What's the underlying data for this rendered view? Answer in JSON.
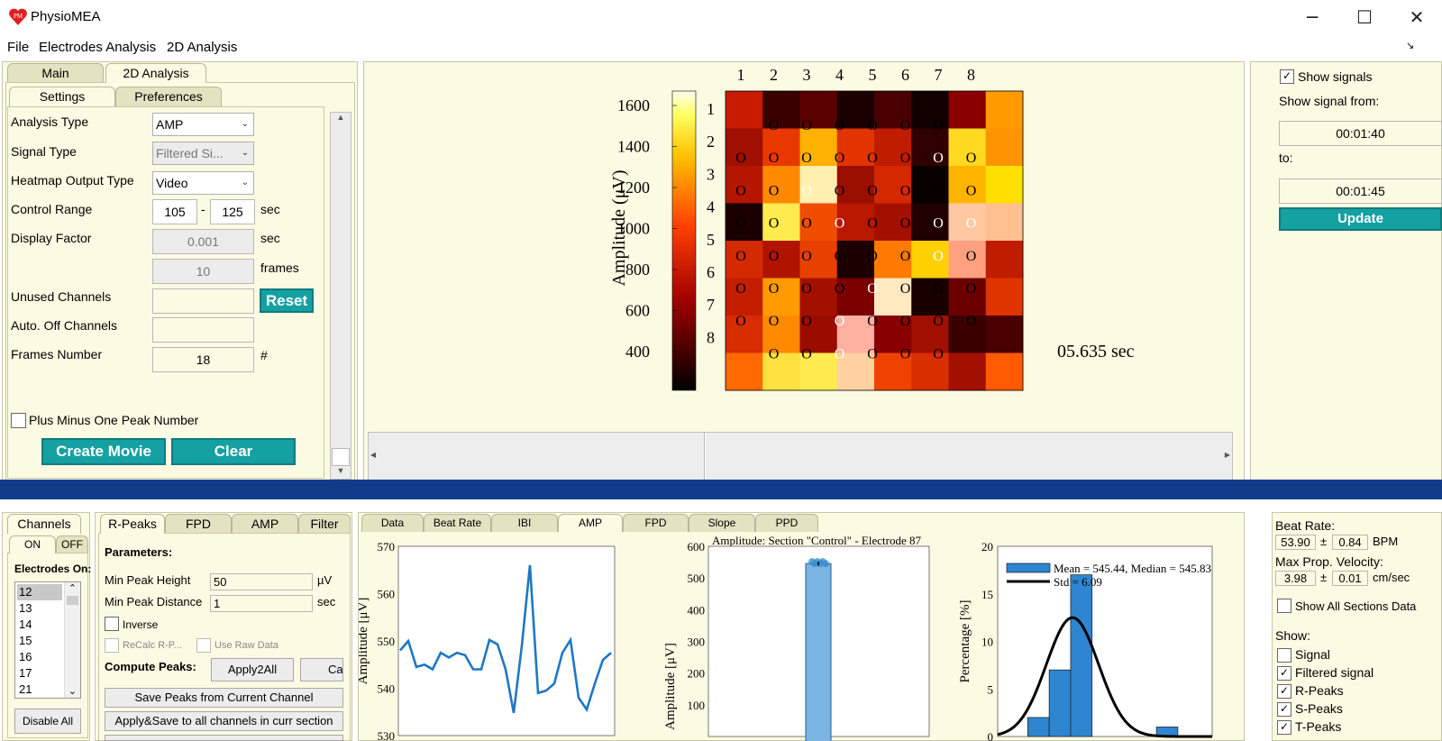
{
  "app": {
    "title": "PhysioMEA",
    "logo_text": "PM"
  },
  "window": {
    "minimize": "─",
    "maximize": "☐",
    "close": "✕"
  },
  "menu": [
    "File",
    "Electrodes Analysis",
    "2D Analysis"
  ],
  "left_panel": {
    "tabs": [
      "Main",
      "2D Analysis"
    ],
    "subtabs": [
      "Settings",
      "Preferences"
    ],
    "analysis_type": {
      "label": "Analysis Type",
      "value": "AMP"
    },
    "signal_type": {
      "label": "Signal Type",
      "value": "Filtered Si..."
    },
    "heatmap_output": {
      "label": "Heatmap Output Type",
      "value": "Video"
    },
    "control_range": {
      "label": "Control Range",
      "from": "105",
      "sep": "-",
      "to": "125",
      "unit": "sec"
    },
    "display_factor": {
      "label": "Display Factor",
      "value": "0.001",
      "unit": "sec"
    },
    "frames": {
      "value": "10",
      "unit": "frames"
    },
    "unused_channels": {
      "label": "Unused Channels",
      "value": "",
      "reset": "Reset"
    },
    "auto_off": {
      "label": "Auto. Off Channels",
      "value": ""
    },
    "frames_number": {
      "label": "Frames Number",
      "value": "18",
      "unit": "#"
    },
    "plus_minus": {
      "label": "Plus Minus One Peak Number",
      "checked": false
    },
    "create_movie": "Create Movie",
    "clear": "Clear"
  },
  "heatmap": {
    "colorbar_label": "Amplitude (μV)",
    "colorbar_ticks": [
      "1600",
      "1400",
      "1200",
      "1000",
      "800",
      "600",
      "400"
    ],
    "col_labels": [
      "1",
      "2",
      "3",
      "4",
      "5",
      "6",
      "7",
      "8"
    ],
    "row_labels": [
      "1",
      "2",
      "3",
      "4",
      "5",
      "6",
      "7",
      "8"
    ],
    "time": "05.635 sec",
    "marker": "O",
    "cells": [
      [
        "#c81a00",
        "#3a0000",
        "#5a0000",
        "#1a0000",
        "#4a0000",
        "#100000",
        "#8a0000",
        "#ff9a00"
      ],
      [
        "#a01000",
        "#e83800",
        "#ffb000",
        "#e23400",
        "#c01c00",
        "#300000",
        "#ffd820",
        "#ff9400"
      ],
      [
        "#b41600",
        "#ff8800",
        "#fff0b0",
        "#9a0e00",
        "#d42800",
        "#080000",
        "#ffb400",
        "#ffe000"
      ],
      [
        "#1a0000",
        "#ffea50",
        "#f04c00",
        "#b81800",
        "#a41000",
        "#200000",
        "#ffc8a0",
        "#ffc090"
      ],
      [
        "#d42a00",
        "#b01400",
        "#e84000",
        "#1c0000",
        "#ff7a00",
        "#ffd000",
        "#ffa080",
        "#c01c00"
      ],
      [
        "#c41e00",
        "#ff9a00",
        "#a41000",
        "#7a0000",
        "#ffe8c0",
        "#180000",
        "#6a0000",
        "#e03400"
      ],
      [
        "#d62c00",
        "#ff8a00",
        "#9a0c00",
        "#ffb0a0",
        "#880000",
        "#a01000",
        "#3a0000",
        "#4a0000"
      ],
      [
        "#ff6a00",
        "#ffe040",
        "#ffea50",
        "#ffd0a0",
        "#ee4200",
        "#d82e00",
        "#a41000",
        "#ff5a00"
      ]
    ],
    "marker_colors": [
      [
        null,
        "k",
        "k",
        "k",
        "k",
        "k",
        "k",
        null
      ],
      [
        "k",
        "k",
        "k",
        "k",
        "k",
        "k",
        "w",
        "k"
      ],
      [
        "k",
        "k",
        "w",
        "k",
        "k",
        "k",
        "k",
        "k"
      ],
      [
        "k",
        "k",
        "k",
        "w",
        "k",
        "k",
        "w",
        "w"
      ],
      [
        "k",
        "k",
        "k",
        "k",
        "k",
        "k",
        "w",
        "k"
      ],
      [
        "k",
        "k",
        "k",
        "k",
        "w",
        "k",
        "k",
        "k"
      ],
      [
        "k",
        "k",
        "k",
        "w",
        "k",
        "k",
        "k",
        "k"
      ],
      [
        null,
        "k",
        "k",
        "w",
        "k",
        "k",
        "k",
        null
      ]
    ]
  },
  "right_panel": {
    "show_signals": {
      "label": "Show signals",
      "checked": true
    },
    "show_from_label": "Show signal from:",
    "from": "00:01:40",
    "to_label": "to:",
    "to": "00:01:45",
    "update": "Update"
  },
  "channels_panel": {
    "tab": "Channels",
    "on": "ON",
    "off": "OFF",
    "electrodes_on": "Electrodes On:",
    "items": [
      "12",
      "13",
      "14",
      "15",
      "16",
      "17",
      "21"
    ],
    "disable_all": "Disable All"
  },
  "peaks_panel": {
    "tabs": [
      "R-Peaks",
      "FPD",
      "AMP",
      "Filter"
    ],
    "parameters": "Parameters:",
    "min_peak_height": {
      "label": "Min Peak Height",
      "value": "50",
      "unit": "µV"
    },
    "min_peak_distance": {
      "label": "Min Peak Distance",
      "value": "1",
      "unit": "sec"
    },
    "inverse": "Inverse",
    "recalc": "ReCalc R-P...",
    "use_raw": "Use Raw Data",
    "compute_peaks": "Compute Peaks:",
    "apply2all": "Apply2All",
    "ca": "Ca",
    "save_peaks": "Save Peaks from Current Channel",
    "apply_save": "Apply&Save to all channels in curr section"
  },
  "analysis_tabs": [
    "Data",
    "Beat Rate",
    "IBI",
    "AMP",
    "FPD",
    "Slope",
    "PPD"
  ],
  "chart_data": [
    {
      "type": "line",
      "ylabel": "Amplitude [μV]",
      "ylim": [
        530,
        570
      ],
      "yticks": [
        "570",
        "560",
        "550",
        "540",
        "530"
      ],
      "values": [
        548,
        550,
        544.5,
        545,
        544,
        547.5,
        546.5,
        547.5,
        547,
        544,
        544,
        550.2,
        549.3,
        544,
        534.8,
        549,
        566,
        539,
        539.5,
        541,
        547.5,
        550.2,
        538,
        535.5,
        541,
        546,
        547.5
      ]
    },
    {
      "type": "bar",
      "title": "Amplitude: Section \"Control\" - Electrode 87",
      "ylabel": "Amplitude [μV]",
      "ylim": [
        0,
        600
      ],
      "yticks": [
        "600",
        "500",
        "400",
        "300",
        "200",
        "100"
      ],
      "values": [
        545.44
      ],
      "error": 6.09
    },
    {
      "type": "bar",
      "ylabel": "Percentage [%]",
      "ylim": [
        0,
        20
      ],
      "yticks": [
        "20",
        "15",
        "10",
        "5",
        "0"
      ],
      "bins": [
        {
          "start": 535,
          "end": 540,
          "value": 2
        },
        {
          "start": 540,
          "end": 545,
          "value": 7
        },
        {
          "start": 545,
          "end": 550,
          "value": 17
        },
        {
          "start": 565,
          "end": 570,
          "value": 1
        }
      ],
      "legend": [
        "Mean = 545.44, Median = 545.83",
        "Std = 6.09"
      ],
      "fit": {
        "mean": 545.44,
        "std": 6.09,
        "peak": 12.5
      }
    }
  ],
  "stats_panel": {
    "beat_rate_label": "Beat Rate:",
    "beat_rate": {
      "value": "53.90",
      "pm": "±",
      "err": "0.84",
      "unit": "BPM"
    },
    "max_prop_label": "Max Prop. Velocity:",
    "max_prop": {
      "value": "3.98",
      "pm": "±",
      "err": "0.01",
      "unit": "cm/sec"
    },
    "show_all": "Show All Sections Data",
    "show_label": "Show:",
    "show_items": [
      {
        "label": "Signal",
        "checked": false
      },
      {
        "label": "Filtered signal",
        "checked": true
      },
      {
        "label": "R-Peaks",
        "checked": true
      },
      {
        "label": "S-Peaks",
        "checked": true
      },
      {
        "label": "T-Peaks",
        "checked": true
      }
    ]
  }
}
